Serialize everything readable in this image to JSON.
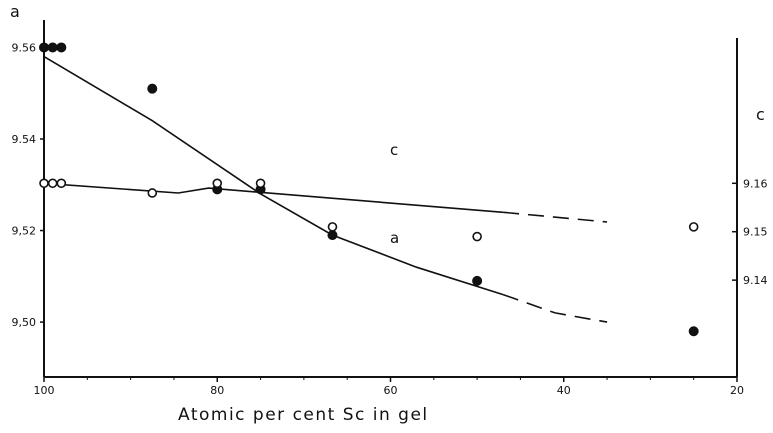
{
  "chart_data": {
    "type": "scatter",
    "panel_label": "a",
    "xlabel": "Atomic per cent Sc in gel",
    "xlim": [
      100,
      20
    ],
    "x_ticks": [
      100,
      80,
      60,
      40,
      20
    ],
    "left_axis": {
      "ylim": [
        9.488,
        9.566
      ],
      "ticks": [
        9.56,
        9.54,
        9.52,
        9.5
      ],
      "tick_labels": [
        "9.56",
        "9.54",
        "9,52",
        "9,50"
      ]
    },
    "right_axis": {
      "label": "c",
      "ylim": [
        9.12,
        9.19
      ],
      "ticks": [
        9.16,
        9.15,
        9.14
      ],
      "tick_labels": [
        "9.16",
        "9.15",
        "9.14"
      ]
    },
    "series": [
      {
        "name": "a",
        "marker": "filled-circle",
        "axis": "left",
        "x": [
          100,
          99,
          98,
          87.5,
          80,
          75,
          66.7,
          50,
          25
        ],
        "y": [
          9.56,
          9.56,
          9.56,
          9.551,
          9.529,
          9.529,
          9.519,
          9.509,
          9.498
        ],
        "fit_solid": {
          "x": [
            100,
            87.5,
            75,
            66.7,
            57,
            47
          ],
          "y": [
            9.558,
            9.544,
            9.528,
            9.519,
            9.512,
            9.506
          ]
        },
        "fit_dashed": {
          "x": [
            47,
            41,
            35
          ],
          "y": [
            9.506,
            9.502,
            9.5
          ]
        }
      },
      {
        "name": "c",
        "marker": "open-circle",
        "axis": "right",
        "x": [
          100,
          99,
          98,
          87.5,
          80,
          75,
          66.7,
          50,
          25
        ],
        "y": [
          9.16,
          9.16,
          9.16,
          9.158,
          9.16,
          9.16,
          9.151,
          9.149,
          9.151
        ],
        "fit_solid": {
          "x": [
            100,
            84.5,
            81,
            47
          ],
          "y": [
            9.16,
            9.158,
            9.159,
            9.154
          ]
        },
        "fit_dashed": {
          "x": [
            47,
            35
          ],
          "y": [
            9.154,
            9.152
          ]
        }
      }
    ],
    "curve_labels": [
      "c",
      "a"
    ]
  }
}
